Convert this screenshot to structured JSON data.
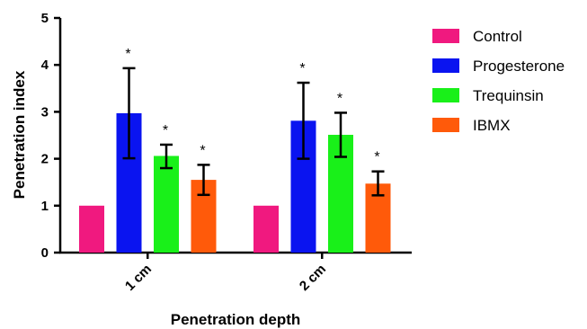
{
  "chart_data": {
    "type": "bar",
    "title": "",
    "xlabel": "Penetration depth",
    "ylabel": "Penetration index",
    "ylim": [
      0,
      5
    ],
    "yticks": [
      0,
      1,
      2,
      3,
      4,
      5
    ],
    "categories": [
      "1 cm",
      "2 cm"
    ],
    "legend_position": "right",
    "series": [
      {
        "name": "Control",
        "color": "#f0197f",
        "values": [
          1.0,
          1.0
        ],
        "err_low": [
          null,
          null
        ],
        "err_high": [
          null,
          null
        ],
        "sig": [
          "",
          ""
        ]
      },
      {
        "name": "Progesterone",
        "color": "#0a14f0",
        "values": [
          2.97,
          2.81
        ],
        "err_low": [
          2.01,
          2.0
        ],
        "err_high": [
          3.93,
          3.62
        ],
        "sig": [
          "*",
          "*"
        ]
      },
      {
        "name": "Trequinsin",
        "color": "#19f019",
        "values": [
          2.06,
          2.51
        ],
        "err_low": [
          1.8,
          2.04
        ],
        "err_high": [
          2.3,
          2.98
        ],
        "sig": [
          "*",
          "*"
        ]
      },
      {
        "name": "IBMX",
        "color": "#ff5a0a",
        "values": [
          1.55,
          1.47
        ],
        "err_low": [
          1.23,
          1.22
        ],
        "err_high": [
          1.87,
          1.73
        ],
        "sig": [
          "*",
          "*"
        ]
      }
    ]
  }
}
